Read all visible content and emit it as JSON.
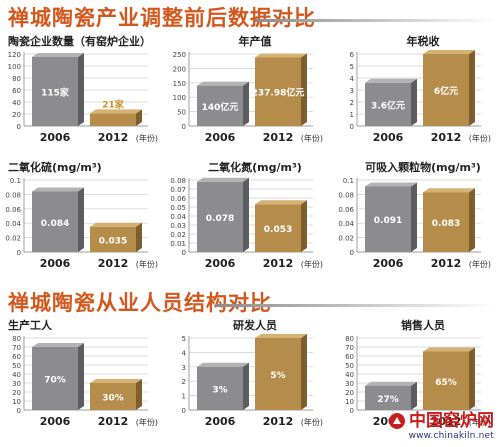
{
  "sections": [
    {
      "title": "禅城陶瓷产业调整前后数据对比"
    },
    {
      "title": "禅城陶瓷从业人员结构对比"
    }
  ],
  "watermark": {
    "name": "中国窑炉网",
    "url": "www.chinakiln.net"
  },
  "colors": {
    "grey": "#8c8c8e",
    "gold": "#b58c4a",
    "value_light": "#ffffff",
    "value_gold": "#c9902a",
    "title": "#d3581d"
  },
  "chart_data": [
    {
      "type": "bar",
      "title": "陶瓷企业数量（有窑炉企业）",
      "categories": [
        "2006",
        "2012"
      ],
      "unit_note": "(年份)",
      "values": [
        115,
        21
      ],
      "data_labels": [
        "115家",
        "21家"
      ],
      "ylim": [
        0,
        120
      ],
      "yticks": [
        0,
        20,
        40,
        60,
        80,
        100,
        120
      ]
    },
    {
      "type": "bar",
      "title": "年产值",
      "categories": [
        "2006",
        "2012"
      ],
      "unit_note": "(年份)",
      "values": [
        140,
        237.98
      ],
      "data_labels": [
        "140亿元",
        "237.98亿元"
      ],
      "ylim": [
        0,
        250
      ],
      "yticks": [
        0,
        50,
        100,
        150,
        200,
        250
      ]
    },
    {
      "type": "bar",
      "title": "年税收",
      "categories": [
        "2006",
        "2012"
      ],
      "unit_note": "(年份)",
      "values": [
        3.6,
        6
      ],
      "data_labels": [
        "3.6亿元",
        "6亿元"
      ],
      "ylim": [
        0,
        6
      ],
      "yticks": [
        0,
        1,
        2,
        3,
        4,
        5,
        6
      ]
    },
    {
      "type": "bar",
      "title": "二氧化硫(mg/m³)",
      "categories": [
        "2006",
        "2012"
      ],
      "unit_note": "(年份)",
      "values": [
        0.084,
        0.035
      ],
      "data_labels": [
        "0.084",
        "0.035"
      ],
      "ylim": [
        0,
        0.1
      ],
      "yticks": [
        "0",
        "0.02",
        "0.04",
        "0.06",
        "0.08",
        "0.1"
      ]
    },
    {
      "type": "bar",
      "title": "二氧化氮(mg/m³)",
      "categories": [
        "2006",
        "2012"
      ],
      "unit_note": "(年份)",
      "values": [
        0.078,
        0.053
      ],
      "data_labels": [
        "0.078",
        "0.053"
      ],
      "ylim": [
        0,
        0.08
      ],
      "yticks": [
        "0",
        "0.01",
        "0.02",
        "0.03",
        "0.04",
        "0.05",
        "0.06",
        "0.07",
        "0.08"
      ]
    },
    {
      "type": "bar",
      "title": "可吸入颗粒物(mg/m³)",
      "categories": [
        "2006",
        "2012"
      ],
      "unit_note": "(年份)",
      "values": [
        0.091,
        0.083
      ],
      "data_labels": [
        "0.091",
        "0.083"
      ],
      "ylim": [
        0,
        0.1
      ],
      "yticks": [
        "0",
        "0.02",
        "0.04",
        "0.06",
        "0.08",
        "0.1"
      ]
    },
    {
      "type": "bar",
      "title": "生产工人",
      "categories": [
        "2006",
        "2012"
      ],
      "unit_note": "(年份)",
      "values": [
        70,
        30
      ],
      "data_labels": [
        "70%",
        "30%"
      ],
      "ylim": [
        0,
        80
      ],
      "yticks": [
        0,
        10,
        20,
        30,
        40,
        50,
        60,
        70,
        80
      ]
    },
    {
      "type": "bar",
      "title": "研发人员",
      "categories": [
        "2006",
        "2012"
      ],
      "unit_note": "(年份)",
      "values": [
        3,
        5
      ],
      "data_labels": [
        "3%",
        "5%"
      ],
      "ylim": [
        0,
        5
      ],
      "yticks": [
        0,
        1,
        2,
        3,
        4,
        5
      ]
    },
    {
      "type": "bar",
      "title": "销售人员",
      "categories": [
        "2006",
        "2012"
      ],
      "unit_note": "(年份)",
      "values": [
        27,
        65
      ],
      "data_labels": [
        "27%",
        "65%"
      ],
      "ylim": [
        0,
        80
      ],
      "yticks": [
        0,
        10,
        20,
        30,
        40,
        50,
        60,
        70,
        80
      ]
    }
  ]
}
